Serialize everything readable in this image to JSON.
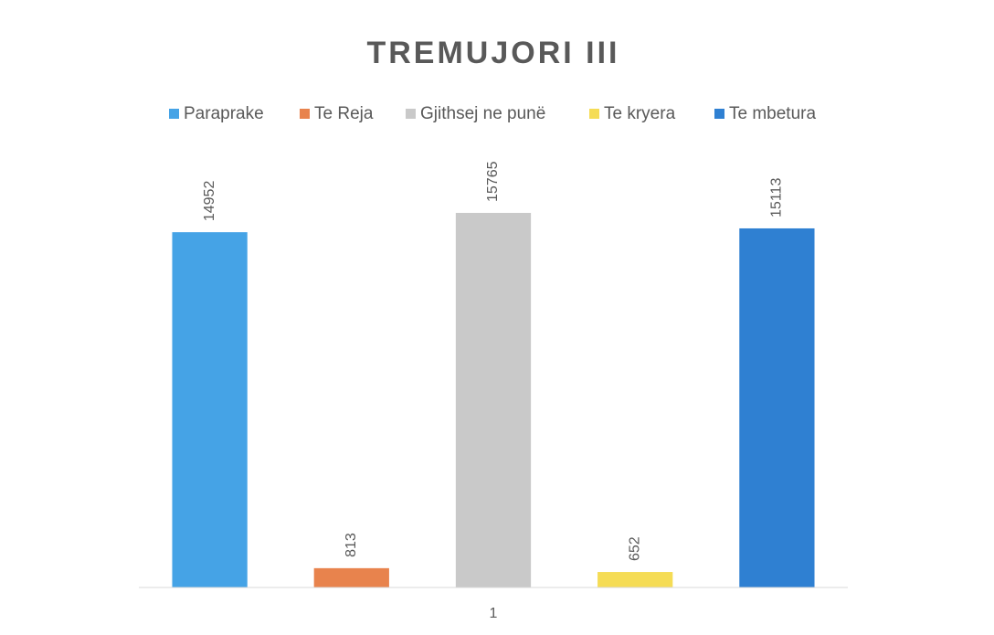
{
  "chart_data": {
    "type": "bar",
    "title": "TREMUJORI III",
    "categories": [
      "1"
    ],
    "series": [
      {
        "name": "Paraprake",
        "color": "#45a3e6",
        "values": [
          14952
        ]
      },
      {
        "name": "Te Reja",
        "color": "#e8834d",
        "values": [
          813
        ]
      },
      {
        "name": "Gjithsej ne punë",
        "color": "#c9c9c9",
        "values": [
          15765
        ]
      },
      {
        "name": "Te kryera",
        "color": "#f5dc55",
        "values": [
          652
        ]
      },
      {
        "name": "Te mbetura",
        "color": "#2f80d2",
        "values": [
          15113
        ]
      }
    ]
  }
}
